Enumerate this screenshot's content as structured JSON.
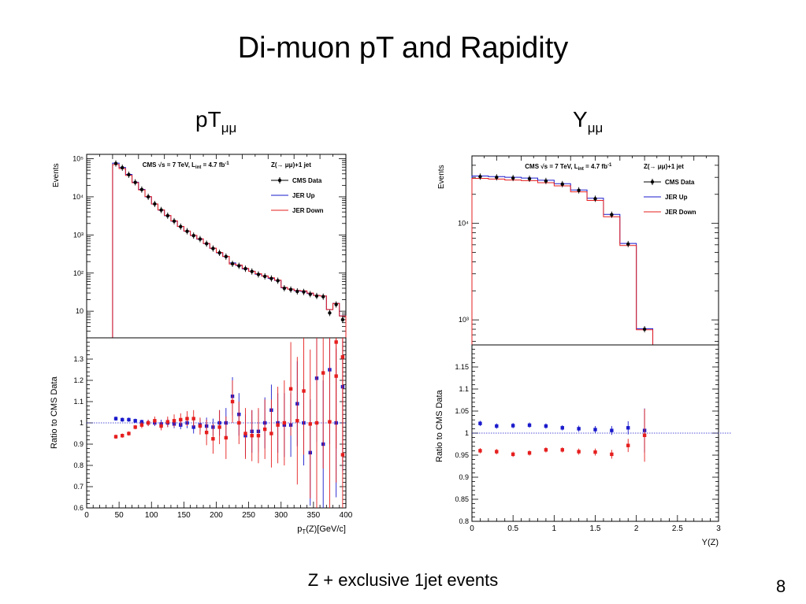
{
  "slide": {
    "title": "Di-muon pT and Rapidity",
    "left_heading": {
      "main": "pT",
      "sub": "μμ"
    },
    "right_heading": {
      "main": "Y",
      "sub": "μμ"
    },
    "caption": "Z + exclusive 1jet events",
    "page_number": "8"
  },
  "chart_data": [
    {
      "type": "line",
      "panel": "pt-distribution",
      "ylabel": "Events",
      "log_y": true,
      "xlim": [
        0,
        400
      ],
      "ylim": [
        2,
        130000
      ],
      "y_ticks": [
        {
          "v": 10,
          "label": "10"
        },
        {
          "v": 100,
          "label": "10²"
        },
        {
          "v": 1000,
          "label": "10³"
        },
        {
          "v": 10000,
          "label": "10⁴"
        },
        {
          "v": 100000,
          "label": "10⁵"
        }
      ],
      "annotation": {
        "cms": "CMS",
        "energy": "√s = 7 TeV, L",
        "lumi_sub": "int",
        "lumi": " = 4.7 fb",
        "lumi_sup": "-1",
        "process": "Z(→ μμ)+1 jet"
      },
      "legend": [
        "CMS Data",
        "JER Up",
        "JER Down"
      ],
      "x": [
        45,
        55,
        65,
        75,
        85,
        95,
        105,
        115,
        125,
        135,
        145,
        155,
        165,
        175,
        185,
        195,
        205,
        215,
        225,
        235,
        245,
        255,
        265,
        275,
        285,
        295,
        305,
        315,
        325,
        335,
        345,
        355,
        365,
        375,
        385,
        395
      ],
      "data_values": [
        75000,
        58000,
        38000,
        24000,
        15500,
        10000,
        6500,
        4500,
        3200,
        2300,
        1650,
        1250,
        960,
        780,
        590,
        440,
        340,
        270,
        175,
        155,
        130,
        110,
        92,
        82,
        72,
        63,
        40,
        37,
        33,
        32,
        28,
        25,
        24,
        9,
        15,
        6
      ],
      "series": [
        {
          "name": "JER Up",
          "values": [
            76500,
            58800,
            38600,
            24200,
            15650,
            10050,
            6450,
            4480,
            3210,
            2290,
            1660,
            1250,
            965,
            775,
            590,
            445,
            340,
            272,
            184,
            158,
            128,
            112,
            93,
            83,
            72,
            64,
            41,
            38,
            34,
            33,
            29,
            26,
            25,
            11,
            16,
            7.5
          ]
        },
        {
          "name": "JER Down",
          "values": [
            70000,
            55000,
            36500,
            23500,
            15200,
            10150,
            6480,
            4530,
            3240,
            2330,
            1670,
            1270,
            975,
            790,
            600,
            450,
            347,
            275,
            173,
            162,
            132,
            111,
            96,
            84,
            75,
            65,
            42,
            38,
            35,
            34,
            30,
            26,
            25,
            11,
            16,
            7.5
          ]
        }
      ]
    },
    {
      "type": "scatter",
      "panel": "pt-ratio",
      "xlabel": "p_T(Z)[GeV/c]",
      "ylabel": "Ratio to CMS Data",
      "xlim": [
        0,
        400
      ],
      "ylim": [
        0.6,
        1.4
      ],
      "x_ticks": [
        0,
        50,
        100,
        150,
        200,
        250,
        300,
        350,
        400
      ],
      "y_ticks": [
        0.6,
        0.7,
        0.8,
        0.9,
        1,
        1.1,
        1.2,
        1.3
      ],
      "x": [
        45,
        55,
        65,
        75,
        85,
        95,
        105,
        115,
        125,
        135,
        145,
        155,
        165,
        175,
        185,
        195,
        205,
        215,
        225,
        235,
        245,
        255,
        265,
        275,
        285,
        295,
        305,
        315,
        325,
        335,
        345,
        355,
        365,
        375,
        385,
        395
      ],
      "series": [
        {
          "name": "JER Up",
          "color": "#1a1acc",
          "values": [
            1.02,
            1.015,
            1.015,
            1.01,
            1.005,
            1.0,
            1.0,
            0.995,
            1.0,
            0.995,
            0.99,
            1.0,
            0.98,
            0.99,
            0.985,
            0.98,
            1.0,
            1.0,
            1.125,
            1.04,
            0.94,
            0.96,
            0.96,
            1.0,
            1.06,
            1.0,
            0.99,
            0.99,
            1.09,
            1.0,
            0.86,
            1.21,
            0.9,
            1.25,
            1.0,
            1.17
          ],
          "errors": [
            0.01,
            0.01,
            0.01,
            0.01,
            0.01,
            0.015,
            0.015,
            0.02,
            0.02,
            0.02,
            0.02,
            0.025,
            0.03,
            0.03,
            0.04,
            0.04,
            0.06,
            0.07,
            0.09,
            0.1,
            0.1,
            0.1,
            0.1,
            0.12,
            0.12,
            0.14,
            0.15,
            0.15,
            0.2,
            0.2,
            0.25,
            0.3,
            0.3,
            0.35,
            0.35,
            0.4
          ]
        },
        {
          "name": "JER Down",
          "color": "#e61e1e",
          "values": [
            0.935,
            0.94,
            0.95,
            0.98,
            0.99,
            1.0,
            1.01,
            0.985,
            1.005,
            1.01,
            1.015,
            1.02,
            1.02,
            0.985,
            0.955,
            0.925,
            0.98,
            0.93,
            1.1,
            1.0,
            0.95,
            0.94,
            0.94,
            0.97,
            0.95,
            0.99,
            1.0,
            1.16,
            1.01,
            1.15,
            0.995,
            1.0,
            1.235,
            1.005,
            1.38,
            0.85,
            1.22,
            1.31
          ],
          "x_override": [
            45,
            55,
            65,
            75,
            85,
            95,
            105,
            115,
            125,
            135,
            145,
            155,
            165,
            175,
            185,
            195,
            205,
            215,
            225,
            235,
            245,
            255,
            265,
            275,
            285,
            295,
            305,
            315,
            325,
            335,
            345,
            355,
            365,
            375,
            385,
            395,
            385,
            395
          ],
          "errors": [
            0.01,
            0.01,
            0.01,
            0.01,
            0.015,
            0.015,
            0.02,
            0.02,
            0.025,
            0.03,
            0.03,
            0.035,
            0.04,
            0.04,
            0.06,
            0.07,
            0.08,
            0.1,
            0.1,
            0.1,
            0.12,
            0.12,
            0.13,
            0.14,
            0.16,
            0.18,
            0.2,
            0.22,
            0.3,
            0.3,
            0.35,
            0.4,
            0.45,
            0.5,
            0.5,
            0.55,
            0.5,
            0.5
          ]
        }
      ]
    },
    {
      "type": "line",
      "panel": "rapidity-distribution",
      "ylabel": "Events",
      "log_y": true,
      "xlim": [
        0,
        3
      ],
      "ylim": [
        550,
        50000
      ],
      "y_ticks": [
        {
          "v": 1000,
          "label": "10³"
        },
        {
          "v": 10000,
          "label": "10⁴"
        }
      ],
      "annotation": {
        "cms": "CMS",
        "energy": "√s = 7 TeV, L",
        "lumi_sub": "int",
        "lumi": " = 4.7 fb",
        "lumi_sup": "-1",
        "process": "Z(→ μμ)+1 jet"
      },
      "legend": [
        "CMS Data",
        "JER Up",
        "JER Down"
      ],
      "x": [
        0.1,
        0.3,
        0.5,
        0.7,
        0.9,
        1.1,
        1.3,
        1.5,
        1.7,
        1.9,
        2.1
      ],
      "data_values": [
        30500,
        30000,
        29500,
        29000,
        27500,
        25500,
        22000,
        18000,
        12300,
        6100,
        800
      ],
      "series": [
        {
          "name": "JER Up",
          "values": [
            31000,
            30500,
            30000,
            29500,
            28000,
            25800,
            22200,
            18200,
            12400,
            6200,
            810
          ]
        },
        {
          "name": "JER Down",
          "values": [
            29300,
            28800,
            28100,
            27700,
            26400,
            24500,
            21200,
            17300,
            11700,
            5900,
            790
          ]
        }
      ]
    },
    {
      "type": "scatter",
      "panel": "rapidity-ratio",
      "xlabel": "Y(Z)",
      "ylabel": "Ratio to CMS Data",
      "xlim": [
        0,
        3
      ],
      "ylim": [
        0.8,
        1.2
      ],
      "x_ticks": [
        0,
        0.5,
        1,
        1.5,
        2,
        2.5,
        3
      ],
      "y_ticks": [
        0.8,
        0.85,
        0.9,
        0.95,
        1,
        1.05,
        1.1,
        1.15
      ],
      "x": [
        0.1,
        0.3,
        0.5,
        0.7,
        0.9,
        1.1,
        1.3,
        1.5,
        1.7,
        1.9,
        2.1
      ],
      "series": [
        {
          "name": "JER Up",
          "color": "#1a1acc",
          "values": [
            1.022,
            1.016,
            1.017,
            1.018,
            1.016,
            1.012,
            1.01,
            1.008,
            1.006,
            1.012,
            1.006
          ],
          "errors": [
            0.006,
            0.006,
            0.006,
            0.006,
            0.006,
            0.006,
            0.007,
            0.008,
            0.01,
            0.015,
            0.05
          ]
        },
        {
          "name": "JER Down",
          "color": "#e61e1e",
          "values": [
            0.96,
            0.958,
            0.952,
            0.955,
            0.962,
            0.962,
            0.958,
            0.957,
            0.952,
            0.972,
            0.995
          ],
          "errors": [
            0.006,
            0.006,
            0.006,
            0.006,
            0.006,
            0.006,
            0.007,
            0.008,
            0.01,
            0.015,
            0.06
          ]
        }
      ]
    }
  ]
}
